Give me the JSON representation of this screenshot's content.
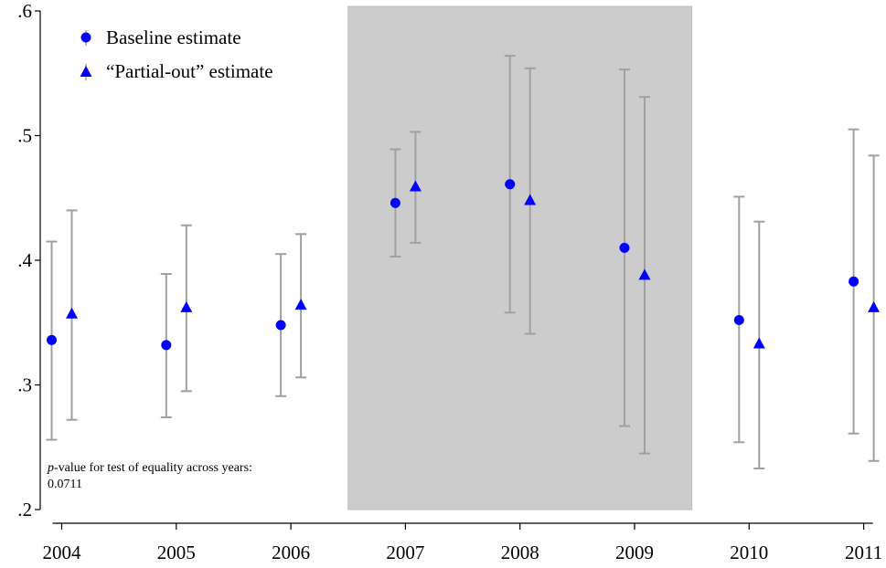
{
  "chart_data": {
    "type": "scatter",
    "x_categories": [
      "2004",
      "2005",
      "2006",
      "2007",
      "2008",
      "2009",
      "2010",
      "2011"
    ],
    "y_ticks": [
      ".2",
      ".3",
      ".4",
      ".5",
      ".6"
    ],
    "y_tick_values": [
      0.2,
      0.3,
      0.4,
      0.5,
      0.6
    ],
    "ylim": [
      0.2,
      0.6
    ],
    "shaded_region": {
      "from": "2007",
      "to": "2009",
      "color": "#cccccc"
    },
    "series": [
      {
        "name": "Baseline estimate",
        "marker": "circle",
        "color": "#0000ff",
        "values": [
          0.336,
          0.332,
          0.348,
          0.446,
          0.461,
          0.41,
          0.352,
          0.383
        ],
        "ci_low": [
          0.256,
          0.274,
          0.291,
          0.403,
          0.358,
          0.267,
          0.254,
          0.261
        ],
        "ci_high": [
          0.415,
          0.389,
          0.405,
          0.489,
          0.564,
          0.553,
          0.451,
          0.505
        ]
      },
      {
        "name": "“Partial-out” estimate",
        "marker": "triangle",
        "color": "#0000ff",
        "values": [
          0.357,
          0.362,
          0.364,
          0.459,
          0.448,
          0.388,
          0.333,
          0.362
        ],
        "ci_low": [
          0.272,
          0.295,
          0.306,
          0.414,
          0.341,
          0.245,
          0.233,
          0.239
        ],
        "ci_high": [
          0.44,
          0.428,
          0.421,
          0.503,
          0.554,
          0.531,
          0.431,
          0.484
        ]
      }
    ],
    "errorbar_color": "#a0a0a0",
    "annotation": {
      "line1_italic": "p",
      "line1_rest": "-value for test of equality across years:",
      "line2": "0.0711"
    }
  }
}
